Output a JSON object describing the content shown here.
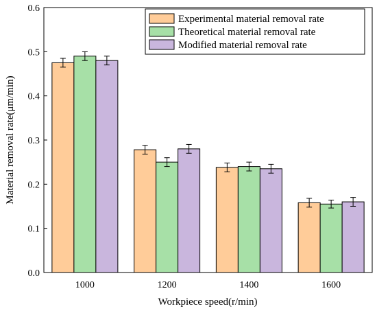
{
  "chart_data": {
    "type": "bar",
    "title": "",
    "xlabel": "Workpiece speed(r/min)",
    "ylabel": "Material removal rate(μm/min)",
    "ylim": [
      0.0,
      0.6
    ],
    "yticks": [
      "0.0",
      "0.1",
      "0.2",
      "0.3",
      "0.4",
      "0.5",
      "0.6"
    ],
    "categories": [
      "1000",
      "1200",
      "1400",
      "1600"
    ],
    "legend_position": "top-right",
    "error_bars": true,
    "grid": false,
    "series": [
      {
        "name": "Experimental material removal rate",
        "color": "#FFCC99",
        "values": [
          0.475,
          0.278,
          0.238,
          0.158
        ],
        "errors": [
          0.01,
          0.01,
          0.01,
          0.01
        ]
      },
      {
        "name": "Theoretical material removal rate",
        "color": "#A7E0A7",
        "values": [
          0.49,
          0.25,
          0.24,
          0.155
        ],
        "errors": [
          0.01,
          0.01,
          0.01,
          0.009
        ]
      },
      {
        "name": "Modified material removal rate",
        "color": "#C9B6DD",
        "values": [
          0.48,
          0.28,
          0.235,
          0.16
        ],
        "errors": [
          0.01,
          0.01,
          0.01,
          0.01
        ]
      }
    ]
  }
}
